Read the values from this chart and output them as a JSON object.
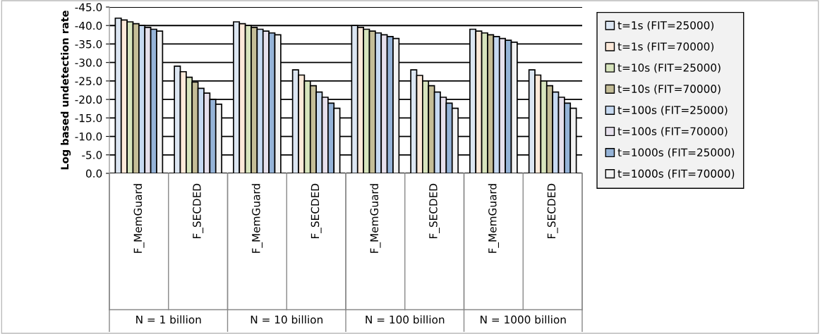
{
  "chart_data": {
    "type": "bar",
    "ylabel": "Log based undetection rate",
    "categories": [
      "F_MemGuard",
      "F_SECDED",
      "F_MemGuard",
      "F_SECDED",
      "F_MemGuard",
      "F_SECDED",
      "F_MemGuard",
      "F_SECDED"
    ],
    "annotations": [
      "N = 1 billion",
      "N = 10 billion",
      "N = 100 billion",
      "N = 1000 billion"
    ],
    "series": [
      {
        "name": "t=1s (FIT=25000)",
        "color": "#dce6f2",
        "values": [
          -42,
          -29,
          -41,
          -28,
          -40,
          -28,
          -39,
          -28
        ]
      },
      {
        "name": "t=1s (FIT=70000)",
        "color": "#fde9d9",
        "values": [
          -41.5,
          -27.5,
          -40.5,
          -26.6,
          -39.5,
          -26.5,
          -38.5,
          -26.6
        ]
      },
      {
        "name": "t=10s (FIT=25000)",
        "color": "#d7e4bd",
        "values": [
          -41,
          -26,
          -40,
          -25,
          -39,
          -25,
          -38,
          -25
        ]
      },
      {
        "name": "t=10s (FIT=70000)",
        "color": "#c4bd97",
        "values": [
          -40.5,
          -24.7,
          -39.5,
          -23.7,
          -38.5,
          -23.7,
          -37.5,
          -23.7
        ]
      },
      {
        "name": "t=100s (FIT=25000)",
        "color": "#c6d9f1",
        "values": [
          -40,
          -23,
          -39,
          -22,
          -38,
          -22,
          -37,
          -22
        ]
      },
      {
        "name": "t=100s (FIT=70000)",
        "color": "#e6e0ec",
        "values": [
          -39.5,
          -21.7,
          -38.5,
          -20.6,
          -37.5,
          -20.6,
          -36.5,
          -20.6
        ]
      },
      {
        "name": "t=1000s (FIT=25000)",
        "color": "#95b3d7",
        "values": [
          -39,
          -20,
          -38,
          -19,
          -37,
          -19,
          -36,
          -19
        ]
      },
      {
        "name": "t=1000s (FIT=70000)",
        "color": "#f2f2f2",
        "values": [
          -38.5,
          -18.7,
          -37.5,
          -17.6,
          -36.5,
          -17.6,
          -35.5,
          -17.6
        ]
      }
    ],
    "ylim": [
      0,
      -45
    ],
    "yticks": [
      {
        "value": 0,
        "label": "0.0"
      },
      {
        "value": -5,
        "label": "-5.0"
      },
      {
        "value": -10,
        "label": "-10.0"
      },
      {
        "value": -15,
        "label": "-15.0"
      },
      {
        "value": -20,
        "label": "-20.0"
      },
      {
        "value": -25,
        "label": "-25.0"
      },
      {
        "value": -30,
        "label": "-30.0"
      },
      {
        "value": -35,
        "label": "-35.0"
      },
      {
        "value": -40,
        "label": "-40.0"
      },
      {
        "value": -45,
        "label": "-45.0"
      }
    ],
    "grid": "y",
    "legend": "right"
  }
}
